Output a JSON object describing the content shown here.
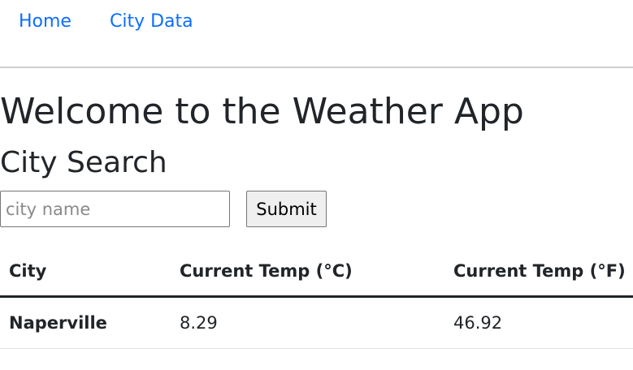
{
  "nav": {
    "home_label": "Home",
    "city_data_label": "City Data"
  },
  "page": {
    "title": "Welcome to the Weather App",
    "subtitle": "City Search"
  },
  "search": {
    "placeholder": "city name",
    "value": "",
    "submit_label": "Submit"
  },
  "table": {
    "headers": {
      "city": "City",
      "temp_c": "Current Temp (°C)",
      "temp_f": "Current Temp (°F)"
    },
    "rows": [
      {
        "city": "Naperville",
        "temp_c": "8.29",
        "temp_f": "46.92"
      }
    ]
  },
  "colors": {
    "link": "#0d6efd",
    "text": "#212529",
    "divider": "#cfcfcf"
  }
}
